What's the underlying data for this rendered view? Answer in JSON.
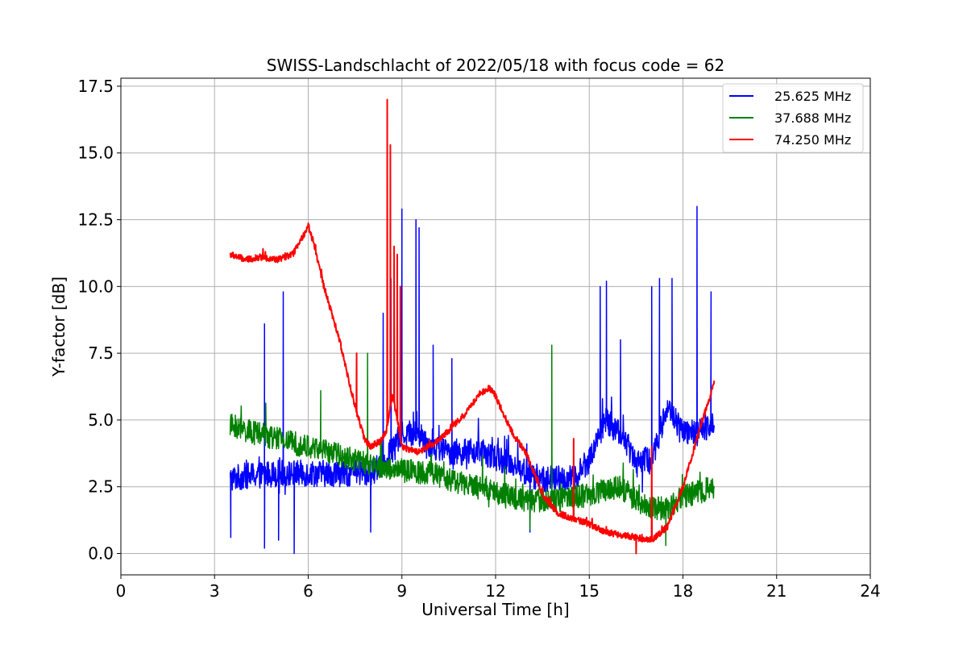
{
  "chart_data": {
    "type": "line",
    "title": "SWISS-Landschlacht of 2022/05/18 with focus code = 62",
    "xlabel": "Universal Time [h]",
    "ylabel": "Y-factor [dB]",
    "xlim": [
      0,
      24
    ],
    "ylim": [
      -0.8,
      17.8
    ],
    "x_ticks": [
      0,
      3,
      6,
      9,
      12,
      15,
      18,
      21,
      24
    ],
    "x_tick_labels": [
      "0",
      "3",
      "6",
      "9",
      "12",
      "15",
      "18",
      "21",
      "24"
    ],
    "y_ticks": [
      0,
      2.5,
      5,
      7.5,
      10,
      12.5,
      15,
      17.5
    ],
    "y_tick_labels": [
      "0.0",
      "2.5",
      "5.0",
      "7.5",
      "10.0",
      "12.5",
      "15.0",
      "17.5"
    ],
    "grid": true,
    "legend_position": "top-right",
    "series": [
      {
        "name": "25.625 MHz",
        "color": "#0000ff",
        "noise": 0.5,
        "x": [
          3.5,
          4.0,
          5.0,
          6.0,
          7.0,
          8.0,
          8.5,
          9.0,
          9.5,
          10.0,
          10.5,
          11.0,
          11.5,
          12.0,
          12.5,
          13.0,
          13.5,
          14.0,
          14.5,
          15.0,
          15.5,
          16.0,
          16.5,
          17.0,
          17.5,
          18.0,
          18.5,
          19.0
        ],
        "y": [
          2.8,
          2.9,
          3.0,
          3.0,
          3.0,
          3.0,
          3.5,
          4.5,
          4.5,
          4.0,
          3.8,
          3.8,
          3.8,
          3.6,
          3.4,
          3.0,
          2.8,
          2.8,
          2.8,
          3.5,
          5.0,
          4.5,
          3.5,
          3.5,
          5.5,
          4.5,
          4.5,
          5.0
        ],
        "spikes": [
          {
            "x": 3.52,
            "y": 0.6
          },
          {
            "x": 4.6,
            "y": 8.6
          },
          {
            "x": 4.6,
            "y": 0.2
          },
          {
            "x": 5.05,
            "y": 0.5
          },
          {
            "x": 5.2,
            "y": 9.8
          },
          {
            "x": 5.55,
            "y": 0.0
          },
          {
            "x": 8.0,
            "y": 0.8
          },
          {
            "x": 8.4,
            "y": 9.0
          },
          {
            "x": 8.65,
            "y": 10.3
          },
          {
            "x": 9.0,
            "y": 12.9
          },
          {
            "x": 9.45,
            "y": 12.5
          },
          {
            "x": 9.55,
            "y": 12.2
          },
          {
            "x": 10.0,
            "y": 7.8
          },
          {
            "x": 10.6,
            "y": 7.3
          },
          {
            "x": 13.1,
            "y": 0.8
          },
          {
            "x": 15.35,
            "y": 10.0
          },
          {
            "x": 15.55,
            "y": 10.2
          },
          {
            "x": 16.0,
            "y": 8.0
          },
          {
            "x": 17.0,
            "y": 10.0
          },
          {
            "x": 17.25,
            "y": 10.3
          },
          {
            "x": 17.65,
            "y": 10.3
          },
          {
            "x": 18.45,
            "y": 13.0
          },
          {
            "x": 18.9,
            "y": 9.8
          },
          {
            "x": 16.7,
            "y": 2.3
          }
        ]
      },
      {
        "name": "37.688 MHz",
        "color": "#008000",
        "noise": 0.45,
        "x": [
          3.5,
          4.0,
          5.0,
          6.0,
          7.0,
          8.0,
          9.0,
          10.0,
          11.0,
          12.0,
          13.0,
          14.0,
          15.0,
          16.0,
          16.5,
          17.0,
          17.5,
          18.0,
          18.5,
          19.0
        ],
        "y": [
          4.8,
          4.6,
          4.3,
          4.0,
          3.7,
          3.3,
          3.1,
          3.0,
          2.6,
          2.3,
          2.0,
          2.0,
          2.2,
          2.5,
          2.0,
          1.7,
          1.7,
          2.1,
          2.3,
          2.5
        ],
        "spikes": [
          {
            "x": 6.4,
            "y": 6.1
          },
          {
            "x": 7.9,
            "y": 7.5
          },
          {
            "x": 13.8,
            "y": 7.8
          },
          {
            "x": 13.1,
            "y": 0.9
          },
          {
            "x": 17.45,
            "y": 0.3
          }
        ]
      },
      {
        "name": "74.250 MHz",
        "color": "#ff0000",
        "noise": 0.12,
        "x": [
          3.5,
          4.0,
          4.5,
          5.0,
          5.5,
          5.8,
          6.0,
          6.2,
          6.5,
          7.0,
          7.5,
          7.8,
          8.0,
          8.3,
          8.5,
          8.7,
          9.0,
          9.5,
          10.0,
          10.5,
          11.0,
          11.5,
          11.8,
          12.0,
          12.5,
          13.0,
          13.5,
          14.0,
          14.5,
          15.0,
          15.5,
          16.0,
          16.5,
          17.0,
          17.5,
          18.0,
          18.5,
          19.0
        ],
        "y": [
          11.2,
          11.0,
          11.1,
          11.0,
          11.2,
          11.8,
          12.3,
          11.5,
          10.0,
          8.0,
          5.5,
          4.3,
          4.0,
          4.2,
          4.6,
          6.0,
          4.0,
          3.8,
          4.1,
          4.6,
          5.2,
          6.0,
          6.2,
          5.9,
          4.6,
          3.7,
          2.2,
          1.5,
          1.3,
          1.1,
          0.8,
          0.7,
          0.6,
          0.5,
          1.0,
          2.5,
          4.5,
          6.4
        ],
        "spikes": [
          {
            "x": 8.53,
            "y": 17.0
          },
          {
            "x": 8.63,
            "y": 15.3
          },
          {
            "x": 8.75,
            "y": 11.5
          },
          {
            "x": 8.85,
            "y": 11.2
          },
          {
            "x": 8.95,
            "y": 10.0
          },
          {
            "x": 7.55,
            "y": 7.5
          },
          {
            "x": 14.5,
            "y": 4.3
          },
          {
            "x": 17.0,
            "y": 4.0
          },
          {
            "x": 16.5,
            "y": 0.0
          }
        ]
      }
    ]
  }
}
